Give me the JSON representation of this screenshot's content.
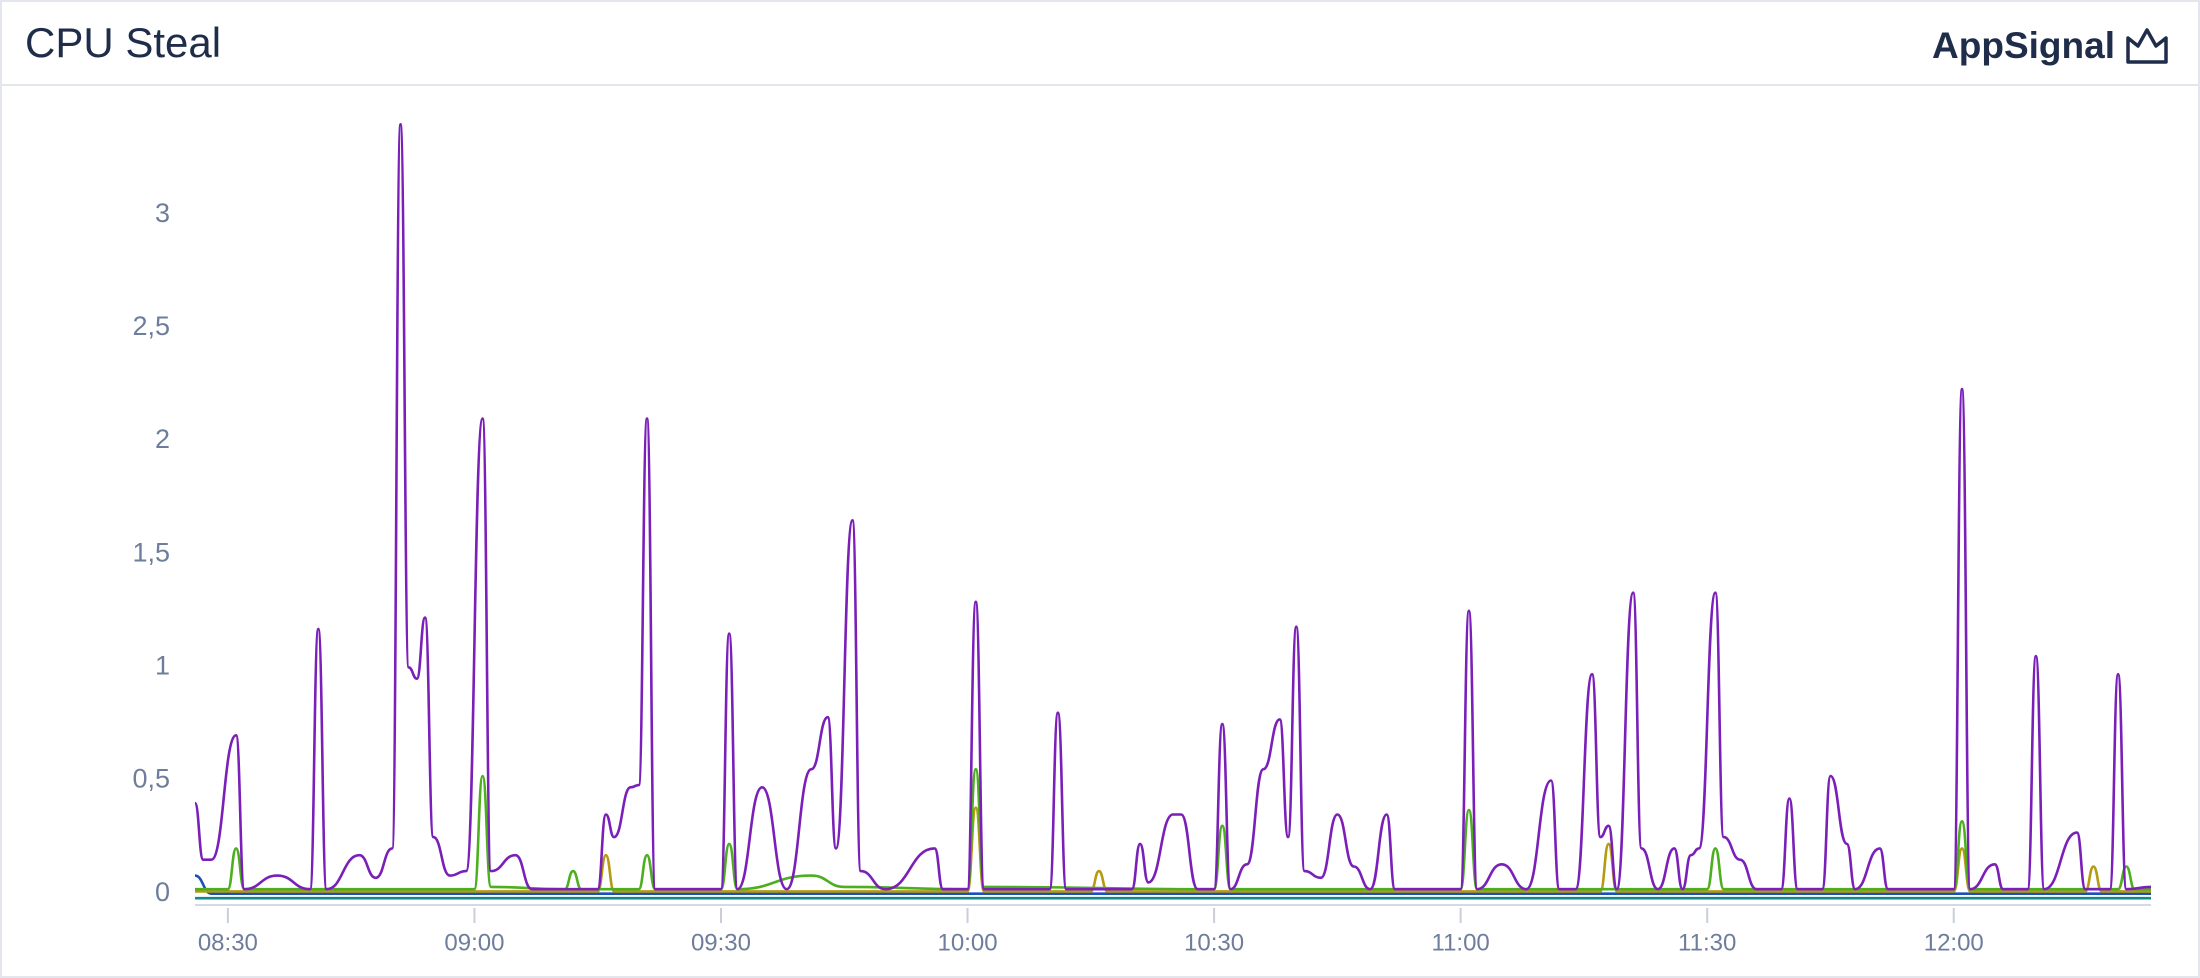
{
  "header": {
    "title": "CPU Steal",
    "brand": "AppSignal"
  },
  "chart_data": {
    "type": "line",
    "xlim": [
      "08:26",
      "12:24"
    ],
    "xticks": [
      "08:30",
      "09:00",
      "09:30",
      "10:00",
      "10:30",
      "11:00",
      "11:30",
      "12:00"
    ],
    "ylim": [
      -0.05,
      3.45
    ],
    "yticks": [
      0,
      {
        "value": 0.5,
        "label": "0,5"
      },
      1,
      {
        "value": 1.5,
        "label": "1,5"
      },
      2,
      {
        "value": 2.5,
        "label": "2,5"
      },
      3
    ],
    "grid": false,
    "series": [
      {
        "color": "#7a1fb8",
        "x": [
          "08:26",
          "08:27",
          "08:28",
          "08:31",
          "08:32",
          "08:36",
          "08:40",
          "08:41",
          "08:42",
          "08:46",
          "08:48",
          "08:50",
          "08:51",
          "08:52",
          "08:53",
          "08:54",
          "08:55",
          "08:57",
          "08:59",
          "09:01",
          "09:02",
          "09:05",
          "09:07",
          "09:15",
          "09:16",
          "09:17",
          "09:19",
          "09:20",
          "09:21",
          "09:22",
          "09:30",
          "09:31",
          "09:32",
          "09:35",
          "09:38",
          "09:41",
          "09:43",
          "09:44",
          "09:46",
          "09:47",
          "09:50",
          "09:56",
          "09:57",
          "10:00",
          "10:01",
          "10:02",
          "10:10",
          "10:11",
          "10:12",
          "10:20",
          "10:21",
          "10:22",
          "10:25",
          "10:26",
          "10:28",
          "10:30",
          "10:31",
          "10:32",
          "10:34",
          "10:36",
          "10:38",
          "10:39",
          "10:40",
          "10:41",
          "10:43",
          "10:45",
          "10:47",
          "10:49",
          "10:51",
          "10:52",
          "11:00",
          "11:01",
          "11:02",
          "11:05",
          "11:08",
          "11:11",
          "11:12",
          "11:14",
          "11:16",
          "11:17",
          "11:18",
          "11:19",
          "11:21",
          "11:22",
          "11:24",
          "11:26",
          "11:27",
          "11:28",
          "11:29",
          "11:31",
          "11:32",
          "11:34",
          "11:36",
          "11:39",
          "11:40",
          "11:41",
          "11:44",
          "11:45",
          "11:47",
          "11:48",
          "11:51",
          "11:52",
          "12:00",
          "12:01",
          "12:02",
          "12:05",
          "12:06",
          "12:09",
          "12:10",
          "12:11",
          "12:15",
          "12:16",
          "12:19",
          "12:20",
          "12:21",
          "12:24"
        ],
        "values": [
          0.4,
          0.15,
          0.15,
          0.7,
          0.02,
          0.08,
          0.02,
          1.17,
          0.02,
          0.17,
          0.07,
          0.2,
          3.4,
          1.0,
          0.95,
          1.22,
          0.25,
          0.08,
          0.1,
          2.1,
          0.1,
          0.17,
          0.02,
          0.02,
          0.35,
          0.25,
          0.47,
          0.48,
          2.1,
          0.02,
          0.02,
          1.15,
          0.02,
          0.47,
          0.02,
          0.55,
          0.78,
          0.2,
          1.65,
          0.1,
          0.02,
          0.2,
          0.02,
          0.02,
          1.29,
          0.02,
          0.02,
          0.8,
          0.02,
          0.02,
          0.22,
          0.05,
          0.35,
          0.35,
          0.02,
          0.02,
          0.75,
          0.02,
          0.13,
          0.55,
          0.77,
          0.25,
          1.18,
          0.1,
          0.07,
          0.35,
          0.12,
          0.02,
          0.35,
          0.02,
          0.02,
          1.25,
          0.02,
          0.13,
          0.02,
          0.5,
          0.02,
          0.02,
          0.97,
          0.25,
          0.3,
          0.02,
          1.33,
          0.2,
          0.02,
          0.2,
          0.02,
          0.17,
          0.2,
          1.33,
          0.25,
          0.15,
          0.02,
          0.02,
          0.42,
          0.02,
          0.02,
          0.52,
          0.22,
          0.02,
          0.2,
          0.02,
          0.02,
          2.23,
          0.02,
          0.13,
          0.02,
          0.02,
          1.05,
          0.02,
          0.27,
          0.02,
          0.02,
          0.97,
          0.02,
          0.03
        ]
      },
      {
        "color": "#4caf1f",
        "x": [
          "08:26",
          "08:30",
          "08:31",
          "08:32",
          "09:00",
          "09:01",
          "09:02",
          "09:11",
          "09:12",
          "09:13",
          "09:20",
          "09:21",
          "09:22",
          "09:30",
          "09:31",
          "09:32",
          "09:41",
          "09:45",
          "10:00",
          "10:01",
          "10:02",
          "10:30",
          "10:31",
          "10:32",
          "11:00",
          "11:01",
          "11:02",
          "11:30",
          "11:31",
          "11:32",
          "12:00",
          "12:01",
          "12:02",
          "12:20",
          "12:21",
          "12:22",
          "12:24"
        ],
        "values": [
          0.02,
          0.02,
          0.2,
          0.02,
          0.02,
          0.52,
          0.03,
          0.02,
          0.1,
          0.02,
          0.02,
          0.17,
          0.02,
          0.02,
          0.22,
          0.02,
          0.08,
          0.03,
          0.02,
          0.55,
          0.03,
          0.02,
          0.3,
          0.02,
          0.02,
          0.37,
          0.02,
          0.02,
          0.2,
          0.02,
          0.02,
          0.32,
          0.02,
          0.02,
          0.12,
          0.02,
          0.02
        ]
      },
      {
        "color": "#b59a12",
        "x": [
          "08:26",
          "09:15",
          "09:16",
          "09:17",
          "10:00",
          "10:01",
          "10:02",
          "10:15",
          "10:16",
          "10:17",
          "11:17",
          "11:18",
          "11:19",
          "12:00",
          "12:01",
          "12:02",
          "12:16",
          "12:17",
          "12:18",
          "12:24"
        ],
        "values": [
          0.01,
          0.01,
          0.17,
          0.01,
          0.01,
          0.38,
          0.01,
          0.01,
          0.1,
          0.01,
          0.01,
          0.22,
          0.01,
          0.01,
          0.2,
          0.01,
          0.01,
          0.12,
          0.01,
          0.01
        ]
      },
      {
        "color": "#1c4fb8",
        "x": [
          "08:26",
          "08:28",
          "12:24"
        ],
        "values": [
          0.08,
          0,
          0
        ]
      },
      {
        "color": "#138a8a",
        "x": [
          "08:26",
          "12:24"
        ],
        "values": [
          -0.02,
          -0.02
        ]
      }
    ]
  }
}
